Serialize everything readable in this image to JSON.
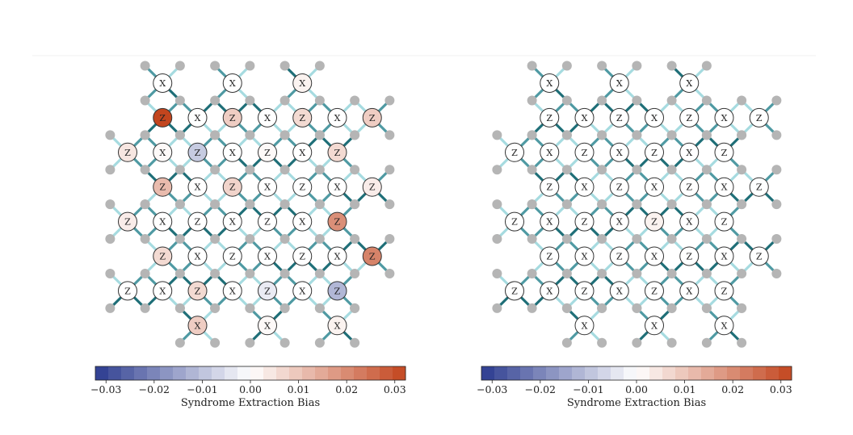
{
  "colors": {
    "neg": "#2b3b8f",
    "zero": "#ffffff",
    "pos": "#c2451e",
    "edge_dark": "#1f6f78",
    "edge_mid": "#4f9aa3",
    "edge_light": "#a6dbe0",
    "data_qubit": "#b5b5b5"
  },
  "colorbar": {
    "label": "Syndrome Extraction Bias",
    "ticks": [
      "−0.03",
      "−0.02",
      "−0.01",
      "0.00",
      "0.01",
      "0.02",
      "0.03"
    ],
    "vmin": -0.03,
    "vmax": 0.03
  },
  "panels": [
    {
      "id": "left",
      "rows": [
        {
          "cells": [
            [
              1,
              "X",
              0
            ],
            [
              3,
              "X",
              0
            ],
            [
              5,
              "X",
              0.002
            ]
          ]
        },
        {
          "cells": [
            [
              1,
              "Z",
              0.03
            ],
            [
              2,
              "X",
              0
            ],
            [
              3,
              "Z",
              0.008
            ],
            [
              4,
              "X",
              0
            ],
            [
              5,
              "Z",
              0.006
            ],
            [
              6,
              "X",
              0
            ],
            [
              7,
              "Z",
              0.008
            ]
          ]
        },
        {
          "cells": [
            [
              0,
              "Z",
              0.004
            ],
            [
              1,
              "X",
              0.001
            ],
            [
              2,
              "Z",
              -0.008
            ],
            [
              3,
              "X",
              0
            ],
            [
              4,
              "Z",
              0.001
            ],
            [
              5,
              "X",
              0
            ],
            [
              6,
              "Z",
              0.006
            ]
          ]
        },
        {
          "cells": [
            [
              1,
              "Z",
              0.011
            ],
            [
              2,
              "X",
              0
            ],
            [
              3,
              "Z",
              0.007
            ],
            [
              4,
              "X",
              0
            ],
            [
              5,
              "Z",
              0
            ],
            [
              6,
              "X",
              0
            ],
            [
              7,
              "Z",
              0.003
            ]
          ]
        },
        {
          "cells": [
            [
              0,
              "Z",
              0.003
            ],
            [
              1,
              "X",
              0
            ],
            [
              2,
              "Z",
              0
            ],
            [
              3,
              "X",
              0
            ],
            [
              4,
              "Z",
              0
            ],
            [
              5,
              "X",
              0
            ],
            [
              6,
              "Z",
              0.018
            ]
          ]
        },
        {
          "cells": [
            [
              1,
              "Z",
              0.006
            ],
            [
              2,
              "X",
              0
            ],
            [
              3,
              "Z",
              0
            ],
            [
              4,
              "X",
              0
            ],
            [
              5,
              "Z",
              0
            ],
            [
              6,
              "X",
              0
            ],
            [
              7,
              "Z",
              0.02
            ]
          ]
        },
        {
          "cells": [
            [
              0,
              "Z",
              0
            ],
            [
              1,
              "X",
              0
            ],
            [
              2,
              "Z",
              0.006
            ],
            [
              3,
              "X",
              0
            ],
            [
              4,
              "Z",
              -0.003
            ],
            [
              5,
              "X",
              0
            ],
            [
              6,
              "Z",
              -0.011
            ]
          ]
        },
        {
          "cells": [
            [
              2,
              "X",
              0.008
            ],
            [
              4,
              "X",
              0.001
            ],
            [
              6,
              "X",
              0.002
            ]
          ]
        }
      ]
    },
    {
      "id": "right",
      "rows": [
        {
          "cells": [
            [
              1,
              "X",
              0
            ],
            [
              3,
              "X",
              0
            ],
            [
              5,
              "X",
              0
            ]
          ]
        },
        {
          "cells": [
            [
              1,
              "Z",
              0
            ],
            [
              2,
              "X",
              0
            ],
            [
              3,
              "Z",
              0
            ],
            [
              4,
              "X",
              0
            ],
            [
              5,
              "Z",
              0
            ],
            [
              6,
              "X",
              0
            ],
            [
              7,
              "Z",
              0
            ]
          ]
        },
        {
          "cells": [
            [
              0,
              "Z",
              0
            ],
            [
              1,
              "X",
              0
            ],
            [
              2,
              "Z",
              0
            ],
            [
              3,
              "X",
              0
            ],
            [
              4,
              "Z",
              0
            ],
            [
              5,
              "X",
              0
            ],
            [
              6,
              "Z",
              0
            ]
          ]
        },
        {
          "cells": [
            [
              1,
              "Z",
              0
            ],
            [
              2,
              "X",
              0
            ],
            [
              3,
              "Z",
              0
            ],
            [
              4,
              "X",
              0
            ],
            [
              5,
              "Z",
              0
            ],
            [
              6,
              "X",
              0
            ],
            [
              7,
              "Z",
              0
            ]
          ]
        },
        {
          "cells": [
            [
              0,
              "Z",
              0
            ],
            [
              1,
              "X",
              0
            ],
            [
              2,
              "Z",
              0
            ],
            [
              3,
              "X",
              0
            ],
            [
              4,
              "Z",
              0.002
            ],
            [
              5,
              "X",
              0
            ],
            [
              6,
              "Z",
              0
            ]
          ]
        },
        {
          "cells": [
            [
              1,
              "Z",
              0
            ],
            [
              2,
              "X",
              0
            ],
            [
              3,
              "Z",
              0
            ],
            [
              4,
              "X",
              0
            ],
            [
              5,
              "Z",
              0
            ],
            [
              6,
              "X",
              0
            ],
            [
              7,
              "Z",
              0
            ]
          ]
        },
        {
          "cells": [
            [
              0,
              "Z",
              0
            ],
            [
              1,
              "X",
              0
            ],
            [
              2,
              "Z",
              0
            ],
            [
              3,
              "X",
              0
            ],
            [
              4,
              "Z",
              0
            ],
            [
              5,
              "X",
              0
            ],
            [
              6,
              "Z",
              0
            ]
          ]
        },
        {
          "cells": [
            [
              2,
              "X",
              0
            ],
            [
              4,
              "X",
              0
            ],
            [
              6,
              "X",
              0
            ]
          ]
        }
      ]
    }
  ]
}
